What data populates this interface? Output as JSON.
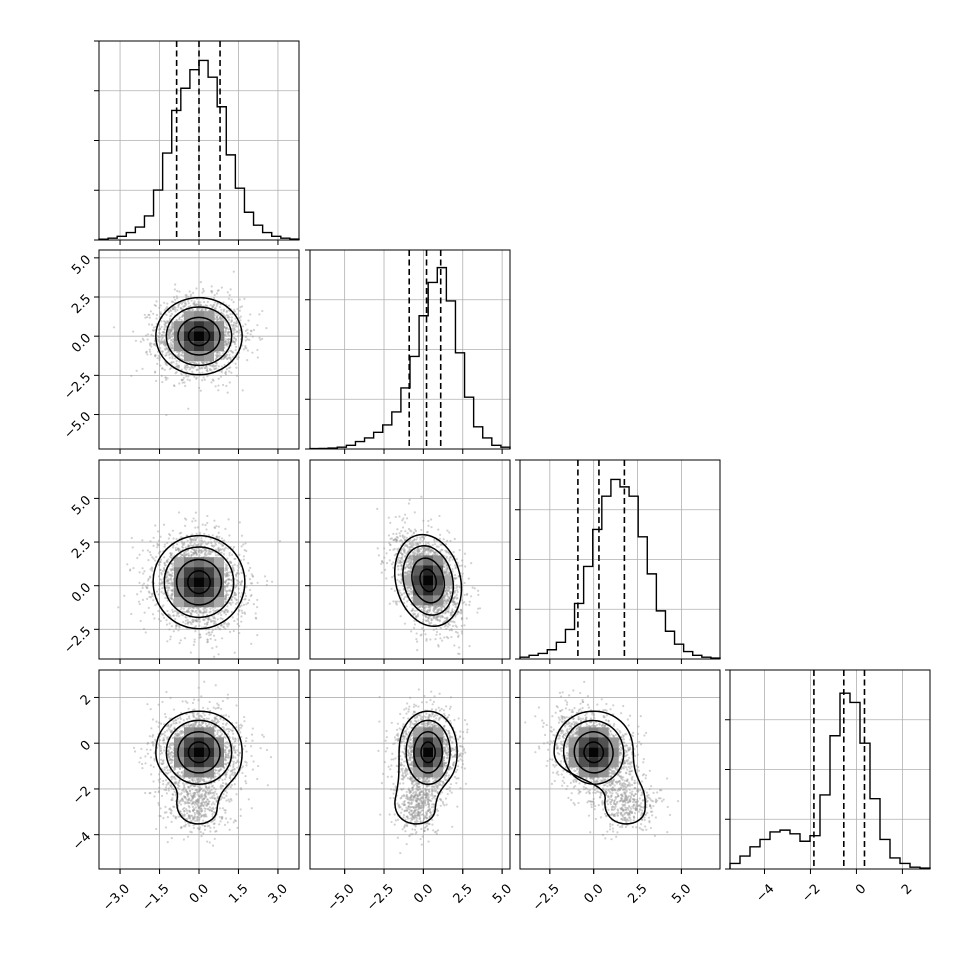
{
  "chart_data": {
    "type": "corner",
    "parameters": [
      {
        "ticks": [
          -3.0,
          -1.5,
          0.0,
          1.5,
          3.0
        ],
        "tick_labels": [
          "−3.0",
          "−1.5",
          "0.0",
          "1.5",
          "3.0"
        ],
        "range": [
          -3.8,
          3.8
        ]
      },
      {
        "ticks": [
          -5.0,
          -2.5,
          0.0,
          2.5,
          5.0
        ],
        "tick_labels": [
          "−5.0",
          "−2.5",
          "0.0",
          "2.5",
          "5.0"
        ],
        "range": [
          -7.2,
          5.5
        ]
      },
      {
        "ticks": [
          -2.5,
          0.0,
          2.5,
          5.0
        ],
        "tick_labels": [
          "−2.5",
          "0.0",
          "2.5",
          "5.0"
        ],
        "range": [
          -4.2,
          7.2
        ]
      },
      {
        "ticks": [
          -4,
          -2,
          0,
          2
        ],
        "tick_labels": [
          "−4",
          "−2",
          "0",
          "2"
        ],
        "range": [
          -5.5,
          3.2
        ]
      }
    ],
    "histograms": [
      {
        "quantiles": [
          -0.85,
          0.0,
          0.8
        ],
        "counts": [
          0.004,
          0.01,
          0.02,
          0.04,
          0.07,
          0.13,
          0.27,
          0.47,
          0.7,
          0.82,
          0.92,
          0.97,
          0.88,
          0.72,
          0.46,
          0.28,
          0.15,
          0.08,
          0.04,
          0.02,
          0.01,
          0.005
        ]
      },
      {
        "quantiles": [
          -0.9,
          0.2,
          1.1
        ],
        "counts": [
          0.002,
          0.003,
          0.005,
          0.01,
          0.02,
          0.04,
          0.06,
          0.09,
          0.13,
          0.2,
          0.33,
          0.5,
          0.72,
          0.9,
          0.98,
          0.8,
          0.52,
          0.28,
          0.12,
          0.06,
          0.02,
          0.01
        ]
      },
      {
        "quantiles": [
          -0.9,
          0.3,
          1.75
        ],
        "counts": [
          0.01,
          0.02,
          0.03,
          0.05,
          0.09,
          0.16,
          0.3,
          0.5,
          0.7,
          0.88,
          0.97,
          0.93,
          0.88,
          0.66,
          0.46,
          0.26,
          0.15,
          0.08,
          0.04,
          0.02,
          0.01,
          0.005
        ]
      },
      {
        "quantiles": [
          -1.85,
          -0.55,
          0.35
        ],
        "counts": [
          0.03,
          0.07,
          0.12,
          0.16,
          0.2,
          0.21,
          0.19,
          0.15,
          0.18,
          0.4,
          0.72,
          0.95,
          0.9,
          0.68,
          0.38,
          0.16,
          0.06,
          0.03,
          0.01,
          0.005
        ]
      }
    ],
    "scatter_panels": [
      {
        "x": 0,
        "y": 1,
        "mean": [
          0.0,
          0.0
        ],
        "sd": [
          0.8,
          1.2
        ],
        "corr": 0.0,
        "tail": null
      },
      {
        "x": 0,
        "y": 2,
        "mean": [
          0.0,
          0.2
        ],
        "sd": [
          0.85,
          1.3
        ],
        "corr": -0.1,
        "tail": null
      },
      {
        "x": 1,
        "y": 2,
        "mean": [
          0.3,
          0.3
        ],
        "sd": [
          1.0,
          1.3
        ],
        "corr": -0.35,
        "tail": null
      },
      {
        "x": 0,
        "y": 3,
        "mean": [
          0.0,
          -0.4
        ],
        "sd": [
          0.8,
          0.9
        ],
        "corr": 0.0,
        "tail": [
          0.0,
          -2.7
        ]
      },
      {
        "x": 1,
        "y": 3,
        "mean": [
          0.3,
          -0.4
        ],
        "sd": [
          0.9,
          0.9
        ],
        "corr": 0.0,
        "tail": [
          -0.4,
          -2.7
        ]
      },
      {
        "x": 2,
        "y": 3,
        "mean": [
          0.0,
          -0.4
        ],
        "sd": [
          1.1,
          0.9
        ],
        "corr": -0.3,
        "tail": [
          1.9,
          -2.7
        ]
      }
    ]
  }
}
